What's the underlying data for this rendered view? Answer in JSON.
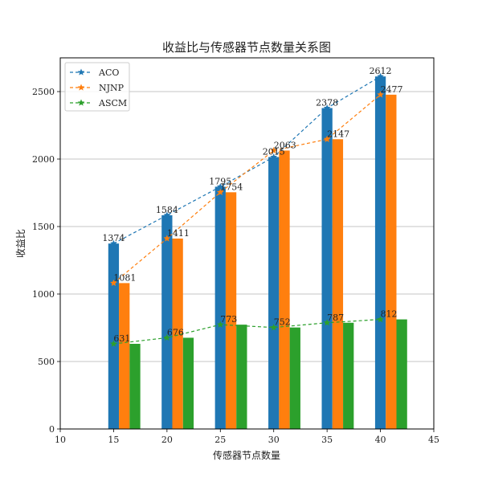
{
  "chart_data": {
    "type": "bar",
    "title": "收益比与传感器节点数量关系图",
    "xlabel": "传感器节点数量",
    "ylabel": "收益比",
    "x": [
      15,
      20,
      25,
      30,
      35,
      40
    ],
    "xlim": [
      10,
      45
    ],
    "ylim": [
      0,
      2750
    ],
    "xticks": [
      "10",
      "15",
      "20",
      "25",
      "30",
      "35",
      "40",
      "45"
    ],
    "yticks": [
      "0",
      "500",
      "1000",
      "1500",
      "2000",
      "2500"
    ],
    "grid": "horizontal",
    "legend_position": "top-left",
    "series": [
      {
        "name": "ACO",
        "values": [
          1374,
          1584,
          1795,
          2015,
          2378,
          2612
        ],
        "color": "#1f77b4",
        "labels": [
          "1374",
          "1584",
          "1795",
          "2015",
          "2378",
          "2612"
        ]
      },
      {
        "name": "NJNP",
        "values": [
          1081,
          1411,
          1754,
          2063,
          2147,
          2477
        ],
        "color": "#ff7f0e",
        "labels": [
          "1081",
          "1411",
          "1754",
          "2063",
          "2147",
          "2477"
        ]
      },
      {
        "name": "ASCM",
        "values": [
          631,
          676,
          773,
          752,
          787,
          812
        ],
        "color": "#2ca02c",
        "labels": [
          "631",
          "676",
          "773",
          "752",
          "787",
          "812"
        ]
      }
    ]
  }
}
